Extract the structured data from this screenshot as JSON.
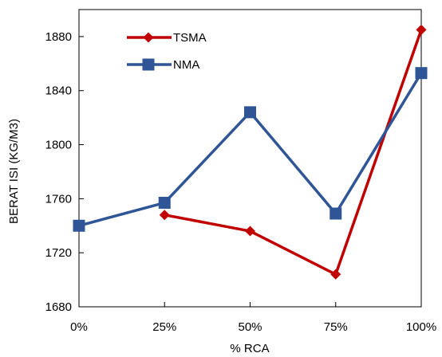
{
  "chart_data": {
    "type": "line",
    "title": "",
    "xlabel": "% RCA",
    "ylabel": "BERAT ISI (KG/M3)",
    "categories": [
      "0%",
      "25%",
      "50%",
      "75%",
      "100%"
    ],
    "ylim": [
      1680,
      1900
    ],
    "yticks": [
      1680,
      1720,
      1760,
      1800,
      1840,
      1880
    ],
    "grid": false,
    "legend_position": "top-left",
    "series": [
      {
        "name": "TSMA",
        "color": "#C00000",
        "marker": "diamond",
        "values": [
          null,
          1748,
          1736,
          1704,
          1885
        ]
      },
      {
        "name": "NMA",
        "color": "#2F5597",
        "marker": "square",
        "values": [
          1740,
          1757,
          1824,
          1749,
          1853
        ]
      }
    ]
  }
}
